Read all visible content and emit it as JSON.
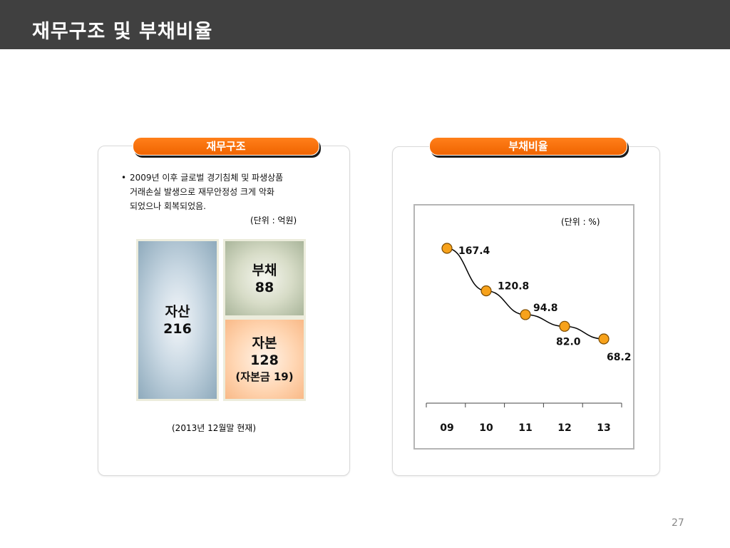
{
  "header": {
    "title": "재무구조 및 부채비율"
  },
  "left_panel": {
    "pill_label": "재무구조",
    "bullet": "•",
    "lines": [
      "2009년 이후 글로벌 경기침체 및 파생상품",
      "거래손실 발생으로 재무안정성 크게 악화",
      "되었으나 회복되었음."
    ],
    "unit": "(단위 : 억원)",
    "asset": {
      "label": "자산",
      "value": "216"
    },
    "debt": {
      "label": "부채",
      "value": "88"
    },
    "equity": {
      "label": "자본",
      "value": "128",
      "sub": "(자본금 19)"
    },
    "date_note": "(2013년 12월말 현재)"
  },
  "right_panel": {
    "pill_label": "부채비율",
    "unit": "(단위 : %)"
  },
  "chart_data": {
    "type": "line",
    "categories": [
      "09",
      "10",
      "11",
      "12",
      "13"
    ],
    "values": [
      167.4,
      120.8,
      94.8,
      82.0,
      68.2
    ],
    "value_labels": [
      "167.4",
      "120.8",
      "94.8",
      "82.0",
      "68.2"
    ],
    "ylabel": "",
    "xlabel": "",
    "grid": false,
    "marker_color": "#f7a21b",
    "line_color": "#000000"
  },
  "page_number": "27"
}
